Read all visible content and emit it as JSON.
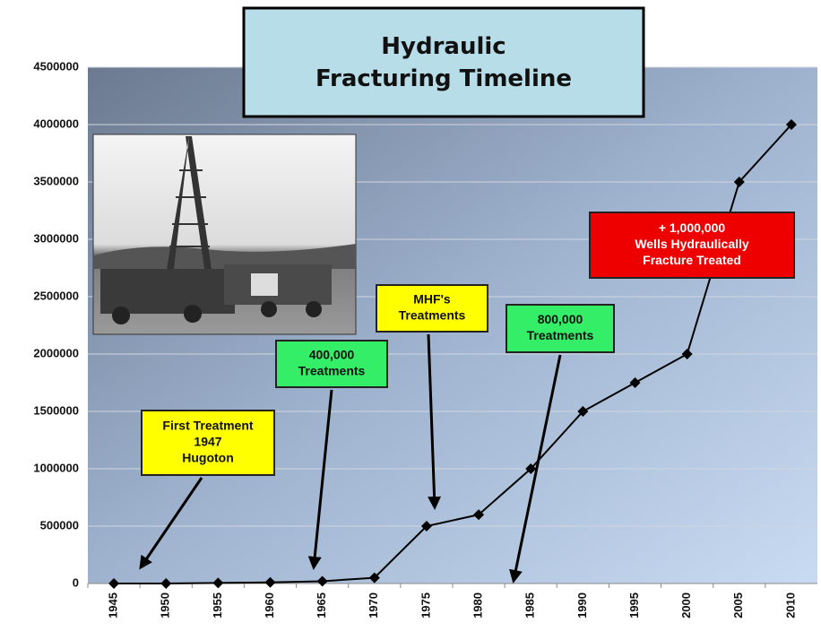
{
  "chart_data": {
    "type": "line",
    "title": "Hydraulic Fracturing Timeline",
    "categories": [
      "1945",
      "1950",
      "1955",
      "1960",
      "1965",
      "1970",
      "1975",
      "1980",
      "1985",
      "1990",
      "1995",
      "2000",
      "2005",
      "2010"
    ],
    "values": [
      0,
      0,
      5000,
      10000,
      20000,
      50000,
      500000,
      600000,
      1000000,
      1500000,
      1750000,
      2000000,
      3500000,
      4000000
    ],
    "color": "#000000",
    "ylim": [
      0,
      4500000
    ],
    "yticks": [
      0,
      500000,
      1000000,
      1500000,
      2000000,
      2500000,
      3000000,
      3500000,
      4000000,
      4500000
    ],
    "grid": true,
    "annotations": [
      {
        "lines": [
          "First Treatment",
          "1947",
          "Hugoton"
        ],
        "color": "#ffff00"
      },
      {
        "lines": [
          "400,000",
          "Treatments"
        ],
        "color": "#33ee66"
      },
      {
        "lines": [
          "MHF's",
          "Treatments"
        ],
        "color": "#ffff00"
      },
      {
        "lines": [
          "800,000",
          "Treatments"
        ],
        "color": "#33ee66"
      },
      {
        "lines": [
          "+ 1,000,000",
          "Wells Hydraulically",
          "Fracture Treated"
        ],
        "color": "#ee0000"
      }
    ]
  }
}
